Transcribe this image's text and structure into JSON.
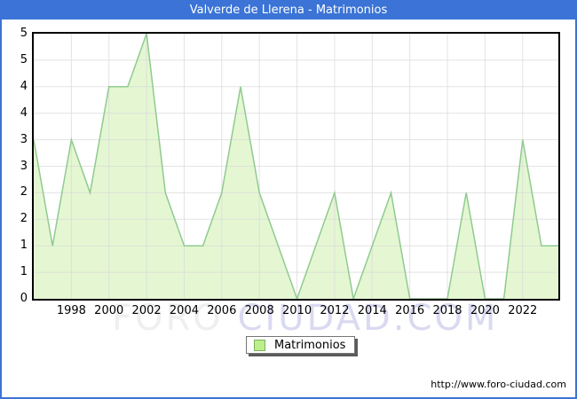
{
  "title": "Valverde de Llerena - Matrimonios",
  "colors": {
    "accent_blue": "#3b74d6",
    "area_fill": "#e4f7d2",
    "area_line": "#90ca90",
    "gridline": "#d9d9d9",
    "plot_border": "#000000",
    "watermark_gray": "#efeef0",
    "watermark_blue": "#d9d9f1",
    "legend_swatch": "#bdee8e"
  },
  "chart_data": {
    "type": "area",
    "title": "Valverde de Llerena - Matrimonios",
    "series_name": "Matrimonios",
    "x": [
      1996,
      1997,
      1998,
      1999,
      2000,
      2001,
      2002,
      2003,
      2004,
      2005,
      2006,
      2007,
      2008,
      2009,
      2010,
      2011,
      2012,
      2013,
      2014,
      2015,
      2016,
      2017,
      2018,
      2019,
      2020,
      2021,
      2022,
      2023
    ],
    "values": [
      3,
      1,
      3,
      2,
      4,
      4,
      5,
      2,
      1,
      1,
      2,
      4,
      2,
      1,
      0,
      1,
      2,
      0,
      1,
      2,
      0,
      0,
      0,
      2,
      0,
      0,
      3,
      1
    ],
    "ylim": [
      0,
      5
    ],
    "xlim_years": [
      1996,
      2023.9
    ],
    "y_tick_values": [
      5,
      4.5,
      4,
      3.5,
      3,
      2.5,
      2,
      1.5,
      1,
      0.5,
      0
    ],
    "y_tick_labels": [
      "5",
      "5",
      "4",
      "4",
      "3",
      "3",
      "2",
      "2",
      "1",
      "1",
      "0"
    ],
    "x_tick_labels": [
      "1998",
      "2000",
      "2002",
      "2004",
      "2006",
      "2008",
      "2010",
      "2012",
      "2014",
      "2016",
      "2018",
      "2020",
      "2022"
    ],
    "grid": true,
    "legend_position": "bottom-center",
    "last_value_extends_to_right_edge": true
  },
  "legend": {
    "label": "Matrimonios"
  },
  "watermark": {
    "part1": "FORO ",
    "part2": "CIUDAD.COM"
  },
  "footer": {
    "url": "http://www.foro-ciudad.com"
  }
}
